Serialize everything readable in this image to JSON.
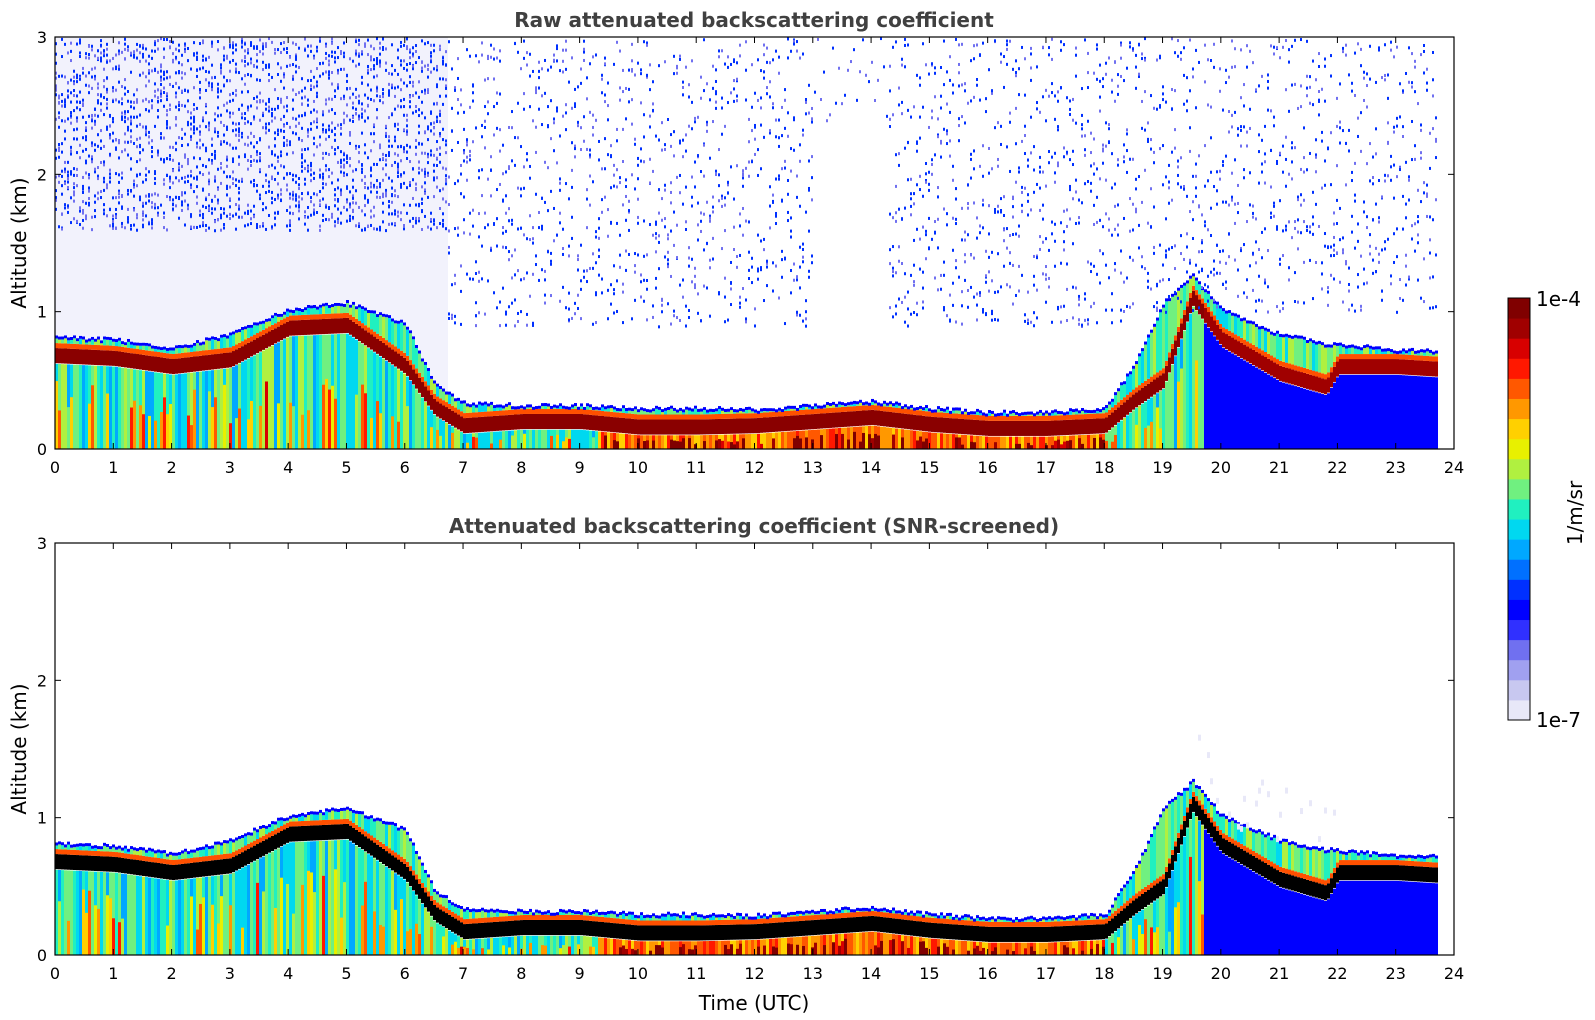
{
  "chart_data": [
    {
      "type": "heatmap",
      "title": "Raw attenuated backscattering coefficient",
      "xlabel": "",
      "ylabel": "Altitude (km)",
      "xlim": [
        0,
        24
      ],
      "ylim": [
        0,
        3
      ],
      "xticks": [
        "0",
        "1",
        "2",
        "3",
        "4",
        "5",
        "6",
        "7",
        "8",
        "9",
        "10",
        "11",
        "12",
        "13",
        "14",
        "15",
        "16",
        "17",
        "18",
        "19",
        "20",
        "21",
        "22",
        "23",
        "24"
      ],
      "yticks": [
        "0",
        "1",
        "2",
        "3"
      ],
      "data_end_hour": 23.75,
      "layer_top_km": [
        [
          0,
          0.8
        ],
        [
          1,
          0.78
        ],
        [
          2,
          0.72
        ],
        [
          3,
          0.82
        ],
        [
          4,
          1.0
        ],
        [
          5,
          1.05
        ],
        [
          6,
          0.9
        ],
        [
          6.5,
          0.45
        ],
        [
          7,
          0.32
        ],
        [
          8,
          0.3
        ],
        [
          9,
          0.3
        ],
        [
          10,
          0.28
        ],
        [
          11,
          0.28
        ],
        [
          12,
          0.27
        ],
        [
          13,
          0.3
        ],
        [
          14,
          0.33
        ],
        [
          15,
          0.28
        ],
        [
          16,
          0.25
        ],
        [
          17,
          0.25
        ],
        [
          18,
          0.28
        ],
        [
          18.5,
          0.6
        ],
        [
          19,
          1.05
        ],
        [
          19.5,
          1.25
        ],
        [
          20,
          1.0
        ],
        [
          21,
          0.82
        ],
        [
          21.8,
          0.75
        ],
        [
          22,
          0.75
        ],
        [
          23,
          0.7
        ],
        [
          23.75,
          0.7
        ]
      ],
      "peak_altitude_km": [
        [
          0,
          0.68
        ],
        [
          1,
          0.66
        ],
        [
          2,
          0.6
        ],
        [
          3,
          0.65
        ],
        [
          4,
          0.88
        ],
        [
          5,
          0.9
        ],
        [
          6,
          0.6
        ],
        [
          6.5,
          0.3
        ],
        [
          7,
          0.17
        ],
        [
          8,
          0.2
        ],
        [
          9,
          0.2
        ],
        [
          10,
          0.16
        ],
        [
          11,
          0.16
        ],
        [
          12,
          0.17
        ],
        [
          13,
          0.2
        ],
        [
          14,
          0.23
        ],
        [
          15,
          0.18
        ],
        [
          16,
          0.15
        ],
        [
          17,
          0.15
        ],
        [
          18,
          0.17
        ],
        [
          18.5,
          0.35
        ],
        [
          19,
          0.5
        ],
        [
          19.5,
          1.1
        ],
        [
          20,
          0.8
        ],
        [
          21,
          0.55
        ],
        [
          21.8,
          0.45
        ],
        [
          22,
          0.6
        ],
        [
          23,
          0.6
        ],
        [
          23.75,
          0.58
        ]
      ],
      "noise_above_layer": true,
      "colorbar": {
        "min": "1e-7",
        "max": "1e-4",
        "label": "1/m/sr",
        "scale": "log"
      }
    },
    {
      "type": "heatmap",
      "title": "Attenuated backscattering coefficient (SNR-screened)",
      "xlabel": "Time (UTC)",
      "ylabel": "Altitude (km)",
      "xlim": [
        0,
        24
      ],
      "ylim": [
        0,
        3
      ],
      "xticks": [
        "0",
        "1",
        "2",
        "3",
        "4",
        "5",
        "6",
        "7",
        "8",
        "9",
        "10",
        "11",
        "12",
        "13",
        "14",
        "15",
        "16",
        "17",
        "18",
        "19",
        "20",
        "21",
        "22",
        "23",
        "24"
      ],
      "yticks": [
        "0",
        "1",
        "2",
        "3"
      ],
      "data_end_hour": 23.75,
      "saturated_peak_color": "#000000",
      "noise_above_layer": false,
      "colorbar": {
        "min": "1e-7",
        "max": "1e-4",
        "label": "1/m/sr",
        "scale": "log"
      }
    }
  ],
  "colorbar": {
    "max_label": "1e-4",
    "min_label": "1e-7",
    "unit_label": "1/m/sr",
    "colors": [
      "#e8e8f8",
      "#c8c8f0",
      "#a0a0f0",
      "#7070f0",
      "#3030ff",
      "#0000ff",
      "#0030ff",
      "#0070ff",
      "#00a8ff",
      "#00d8f0",
      "#20f0c0",
      "#70f080",
      "#b0f040",
      "#e8f000",
      "#ffd000",
      "#ff9800",
      "#ff5800",
      "#ff1800",
      "#d80000",
      "#a00000",
      "#800000"
    ]
  }
}
